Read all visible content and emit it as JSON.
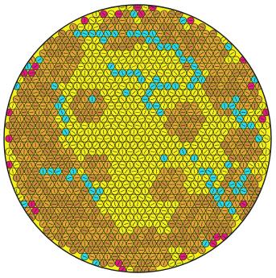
{
  "colors": {
    "background": "#ffffff",
    "disc_stroke": "#1a1a1a",
    "particle_stroke": "#2a2a10",
    "arrow": "#1a1a1a",
    "yellow": "#f4f01c",
    "orange": "#e1a33a",
    "brown": "#c88a3c",
    "cyan": "#2ad8e8",
    "magenta": "#e8197d"
  },
  "legend": {
    "particle_states": [
      "yellow",
      "orange",
      "brown",
      "cyan",
      "magenta"
    ]
  }
}
